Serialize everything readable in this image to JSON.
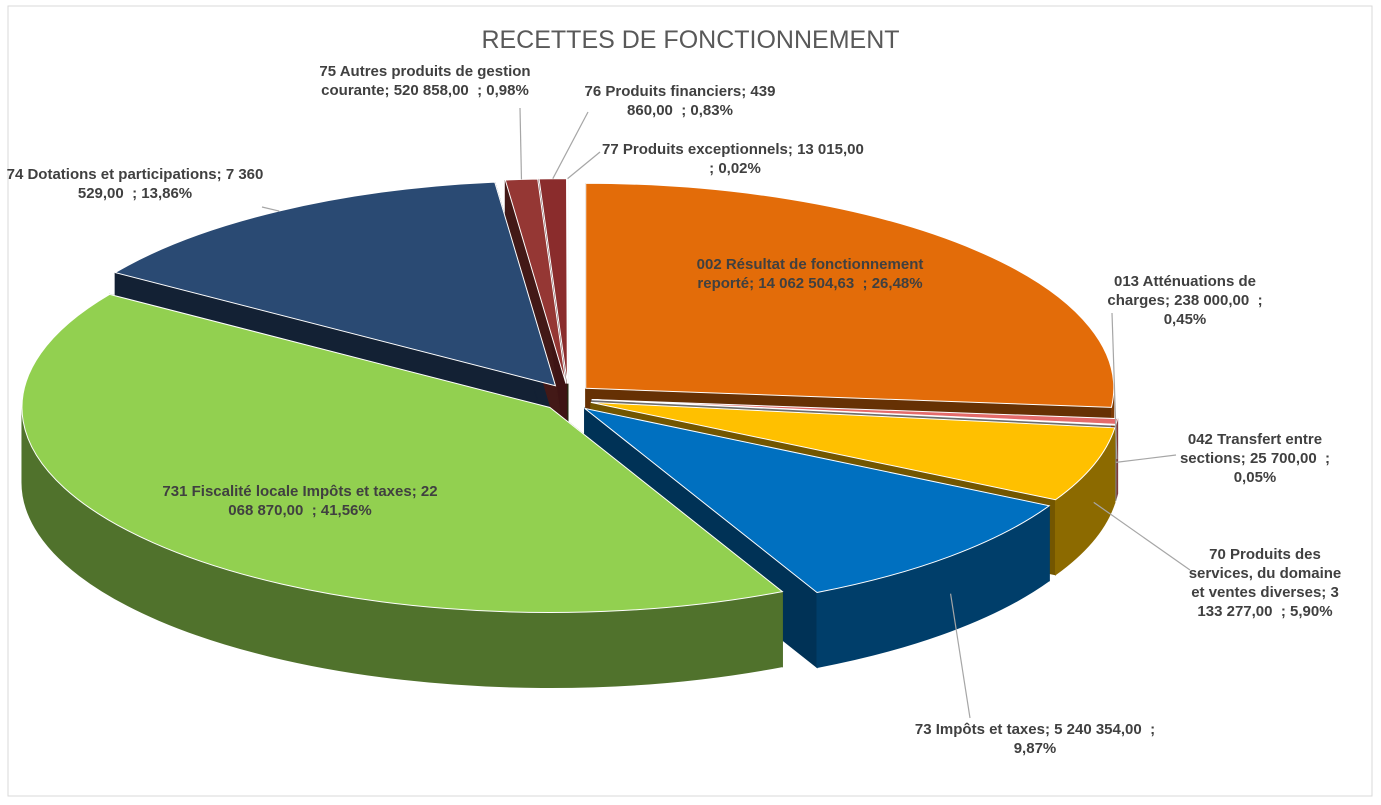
{
  "chart_data": {
    "type": "pie3d",
    "title": "RECETTES DE FONCTIONNEMENT",
    "categories": [
      "002 Résultat de fonctionnement reporté",
      "013 Atténuations de charges",
      "042 Transfert entre sections",
      "70 Produits des services, du domaine et ventes diverses",
      "73 Impôts et taxes",
      "731 Fiscalité locale Impôts et taxes",
      "74 Dotations et participations",
      "75 Autres produits de gestion courante",
      "76 Produits financiers",
      "77 Produits exceptionnels"
    ],
    "values": [
      14062504.63,
      238000,
      25700,
      3133277,
      5240354,
      22068870,
      7360529,
      520858,
      439860,
      13015
    ],
    "value_labels": [
      "14 062 504,63",
      "238 000,00",
      "25 700,00",
      "3 133 277,00",
      "5 240 354,00",
      "22 068 870,00",
      "7 360 529,00",
      "520 858,00",
      "439 860,00",
      "13 015,00"
    ],
    "percentages": [
      26.48,
      0.45,
      0.05,
      5.9,
      9.87,
      41.56,
      13.86,
      0.98,
      0.83,
      0.02
    ],
    "percentage_labels": [
      "26,48%",
      "0,45%",
      "0,05%",
      "5,90%",
      "9,87%",
      "41,56%",
      "13,86%",
      "0,98%",
      "0,83%",
      "0,02%"
    ],
    "separator": ";",
    "colors": [
      "#e36c09",
      "#e46b6b",
      "#f2f2f2",
      "#ffc000",
      "#0070c0",
      "#92d050",
      "#2a4a73",
      "#953734",
      "#8a2c2c",
      "#4f6228"
    ]
  }
}
